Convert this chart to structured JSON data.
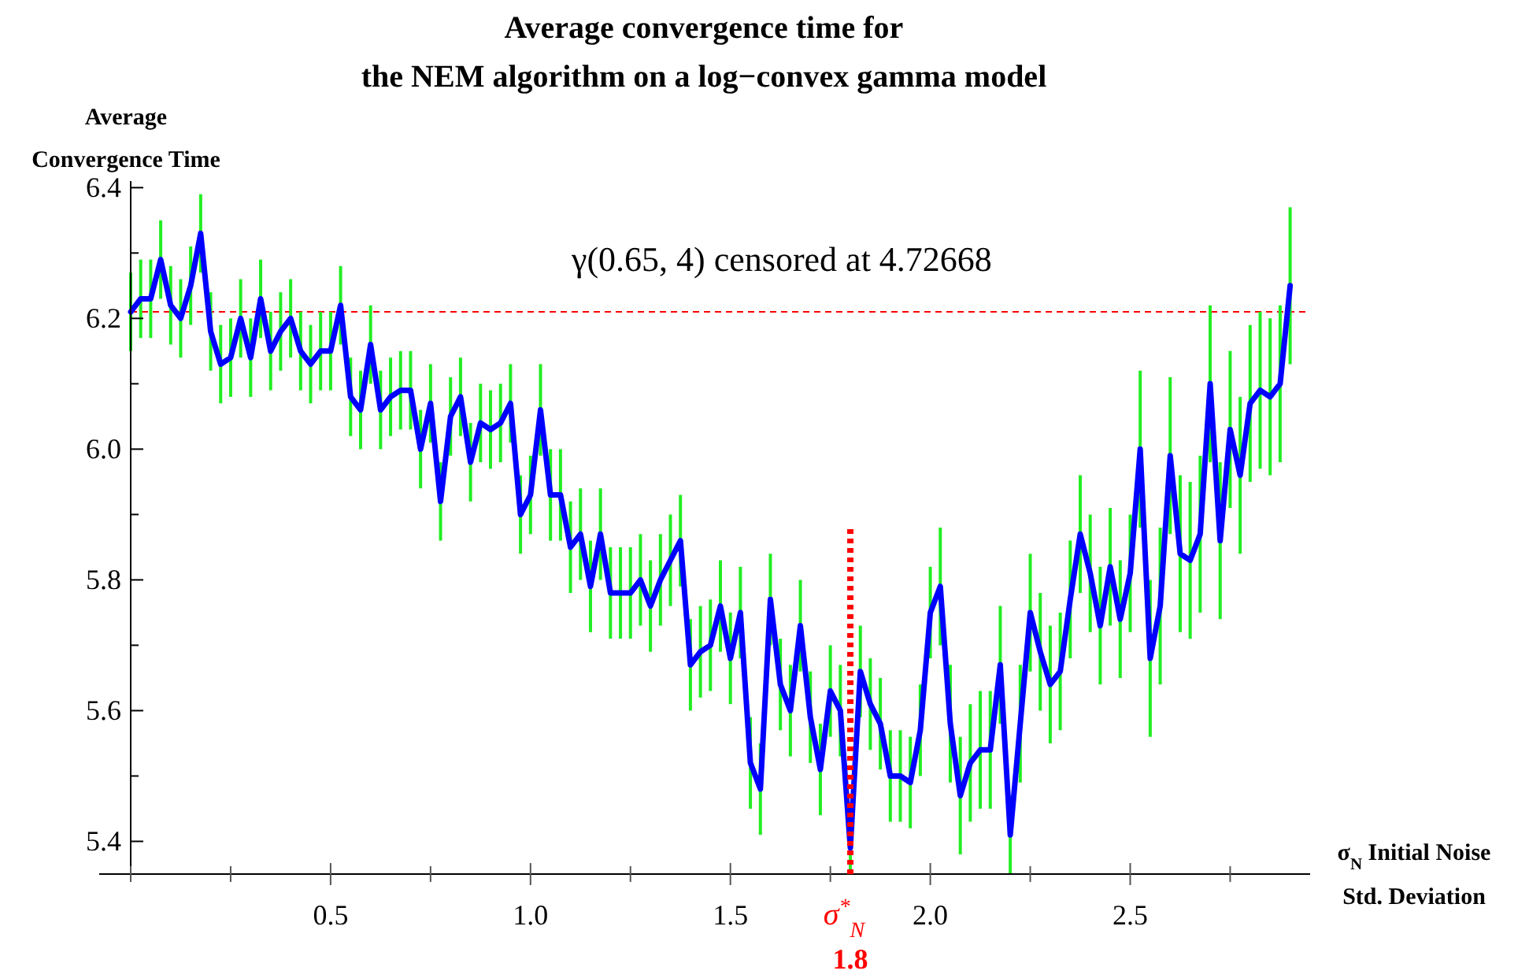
{
  "chart_data": {
    "type": "line",
    "title": "Average convergence time for\nthe NEM algorithm on a log−convex gamma model",
    "xlabel": "σ$_{N}$ Initial Noise\nStd. Deviation",
    "ylabel": "Average\nConvergence Time",
    "annotations": [
      "γ(0.65, 4) censored at 4.72668"
    ],
    "x": [
      0,
      0.025,
      0.05,
      0.075,
      0.1,
      0.125,
      0.15,
      0.175,
      0.2,
      0.225,
      0.25,
      0.275,
      0.3,
      0.325,
      0.35,
      0.375,
      0.4,
      0.425,
      0.45,
      0.475,
      0.5,
      0.525,
      0.55,
      0.575,
      0.6,
      0.625,
      0.65,
      0.675,
      0.7,
      0.725,
      0.75,
      0.775,
      0.8,
      0.825,
      0.85,
      0.875,
      0.9,
      0.925,
      0.95,
      0.975,
      1,
      1.025,
      1.05,
      1.075,
      1.1,
      1.125,
      1.15,
      1.175,
      1.2,
      1.225,
      1.25,
      1.275,
      1.3,
      1.325,
      1.35,
      1.375,
      1.4,
      1.425,
      1.45,
      1.475,
      1.5,
      1.525,
      1.55,
      1.575,
      1.6,
      1.625,
      1.65,
      1.675,
      1.7,
      1.725,
      1.75,
      1.775,
      1.8,
      1.825,
      1.85,
      1.875,
      1.9,
      1.925,
      1.95,
      1.975,
      2,
      2.025,
      2.05,
      2.075,
      2.1,
      2.125,
      2.15,
      2.175,
      2.2,
      2.225,
      2.25,
      2.275,
      2.3,
      2.325,
      2.35,
      2.375,
      2.4,
      2.425,
      2.45,
      2.475,
      2.5,
      2.525,
      2.55,
      2.575,
      2.6,
      2.625,
      2.65,
      2.675,
      2.7,
      2.725,
      2.75,
      2.775,
      2.8,
      2.825,
      2.85,
      2.875,
      2.9
    ],
    "series": [
      {
        "color": "#0000ff",
        "values": [
          6.21,
          6.23,
          6.23,
          6.29,
          6.22,
          6.2,
          6.25,
          6.33,
          6.18,
          6.13,
          6.14,
          6.2,
          6.14,
          6.23,
          6.15,
          6.18,
          6.2,
          6.15,
          6.13,
          6.15,
          6.15,
          6.22,
          6.08,
          6.06,
          6.16,
          6.06,
          6.08,
          6.09,
          6.09,
          6.0,
          6.07,
          5.92,
          6.05,
          6.08,
          5.98,
          6.04,
          6.03,
          6.04,
          6.07,
          5.9,
          5.93,
          6.06,
          5.93,
          5.93,
          5.85,
          5.87,
          5.79,
          5.87,
          5.78,
          5.78,
          5.78,
          5.8,
          5.76,
          5.8,
          5.83,
          5.86,
          5.67,
          5.69,
          5.7,
          5.76,
          5.68,
          5.75,
          5.52,
          5.48,
          5.77,
          5.64,
          5.6,
          5.73,
          5.59,
          5.51,
          5.63,
          5.6,
          5.39,
          5.66,
          5.61,
          5.58,
          5.5,
          5.5,
          5.49,
          5.57,
          5.75,
          5.79,
          5.58,
          5.47,
          5.52,
          5.54,
          5.54,
          5.67,
          5.41,
          5.58,
          5.75,
          5.69,
          5.64,
          5.66,
          5.77,
          5.87,
          5.81,
          5.73,
          5.82,
          5.74,
          5.81,
          6.0,
          5.68,
          5.76,
          5.99,
          5.84,
          5.83,
          5.87,
          6.1,
          5.86,
          6.03,
          5.96,
          6.07,
          6.09,
          6.08,
          6.1,
          6.25
        ],
        "errors": [
          0.06,
          0.06,
          0.06,
          0.06,
          0.06,
          0.06,
          0.06,
          0.06,
          0.06,
          0.06,
          0.06,
          0.06,
          0.06,
          0.06,
          0.06,
          0.06,
          0.06,
          0.06,
          0.06,
          0.06,
          0.06,
          0.06,
          0.06,
          0.06,
          0.06,
          0.06,
          0.06,
          0.06,
          0.06,
          0.06,
          0.06,
          0.06,
          0.06,
          0.06,
          0.06,
          0.06,
          0.06,
          0.06,
          0.06,
          0.06,
          0.06,
          0.07,
          0.07,
          0.07,
          0.07,
          0.07,
          0.07,
          0.07,
          0.07,
          0.07,
          0.07,
          0.07,
          0.07,
          0.07,
          0.07,
          0.07,
          0.07,
          0.07,
          0.07,
          0.07,
          0.07,
          0.07,
          0.07,
          0.07,
          0.07,
          0.07,
          0.07,
          0.07,
          0.07,
          0.07,
          0.07,
          0.07,
          0.035,
          0.07,
          0.07,
          0.07,
          0.07,
          0.07,
          0.07,
          0.07,
          0.07,
          0.09,
          0.09,
          0.09,
          0.09,
          0.09,
          0.09,
          0.09,
          0.06,
          0.09,
          0.09,
          0.09,
          0.09,
          0.09,
          0.09,
          0.09,
          0.09,
          0.09,
          0.09,
          0.09,
          0.09,
          0.12,
          0.12,
          0.12,
          0.12,
          0.12,
          0.12,
          0.12,
          0.12,
          0.12,
          0.12,
          0.12,
          0.12,
          0.12,
          0.12,
          0.12,
          0.12
        ]
      }
    ],
    "xlim": [
      0,
      2.95
    ],
    "xticks": [
      {
        "value": 0,
        "label": null
      },
      {
        "value": 0.25,
        "label": null
      },
      0.5,
      {
        "value": 0.75,
        "label": null
      },
      {
        "value": 1,
        "label": "1.0"
      },
      {
        "value": 1.25,
        "label": null
      },
      1.5,
      {
        "value": 1.75,
        "label": null
      },
      {
        "value": 2,
        "label": "2.0"
      },
      {
        "value": 2.25,
        "label": null
      },
      2.5,
      {
        "value": 2.75,
        "label": null
      }
    ],
    "ylim": [
      5.35,
      6.41
    ],
    "yticks": [
      5.4,
      {
        "value": 5.5,
        "label": null
      },
      5.6,
      {
        "value": 5.7,
        "label": null
      },
      5.8,
      {
        "value": 5.9,
        "label": null
      },
      {
        "value": 6,
        "label": "6.0"
      },
      {
        "value": 6.1,
        "label": null
      },
      6.2,
      {
        "value": 6.3,
        "label": null
      },
      6.4
    ],
    "ref_lines": [
      {
        "axis": "y",
        "value": 6.21,
        "color": "#ff0000",
        "line_style": "dashed"
      },
      {
        "axis": "x",
        "value": 1.8,
        "label": "σ$^{*}$$_{N}$\n1.8",
        "color": "#ff0000",
        "line_style": "dotted"
      }
    ]
  }
}
